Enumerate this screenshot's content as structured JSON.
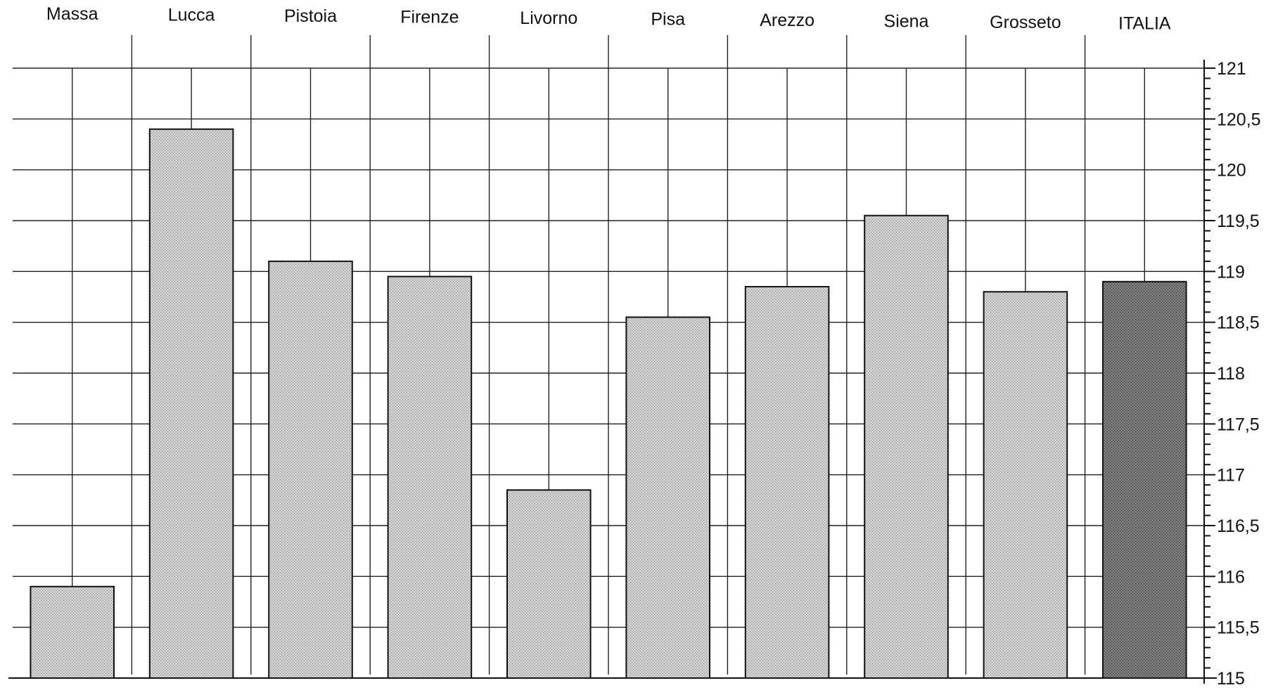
{
  "chart_data": {
    "type": "bar",
    "categories": [
      "Massa",
      "Lucca",
      "Pistoia",
      "Firenze",
      "Livorno",
      "Pisa",
      "Arezzo",
      "Siena",
      "Grosseto",
      "ITALIA"
    ],
    "values": [
      115.9,
      120.4,
      119.1,
      118.95,
      116.85,
      118.55,
      118.85,
      119.55,
      118.8,
      118.9
    ],
    "ylim": [
      115,
      121
    ],
    "yticks": [
      "115",
      "115,5",
      "116",
      "116,5",
      "117",
      "117,5",
      "118",
      "118,5",
      "119",
      "119,5",
      "120",
      "120,5",
      "121"
    ],
    "y_axis_position": "right",
    "category_labels_position": "top",
    "grid": true,
    "colors": {
      "bar": "#bdbdbd",
      "highlight_bar": "#6e6e6e",
      "highlight_category": "ITALIA"
    }
  }
}
